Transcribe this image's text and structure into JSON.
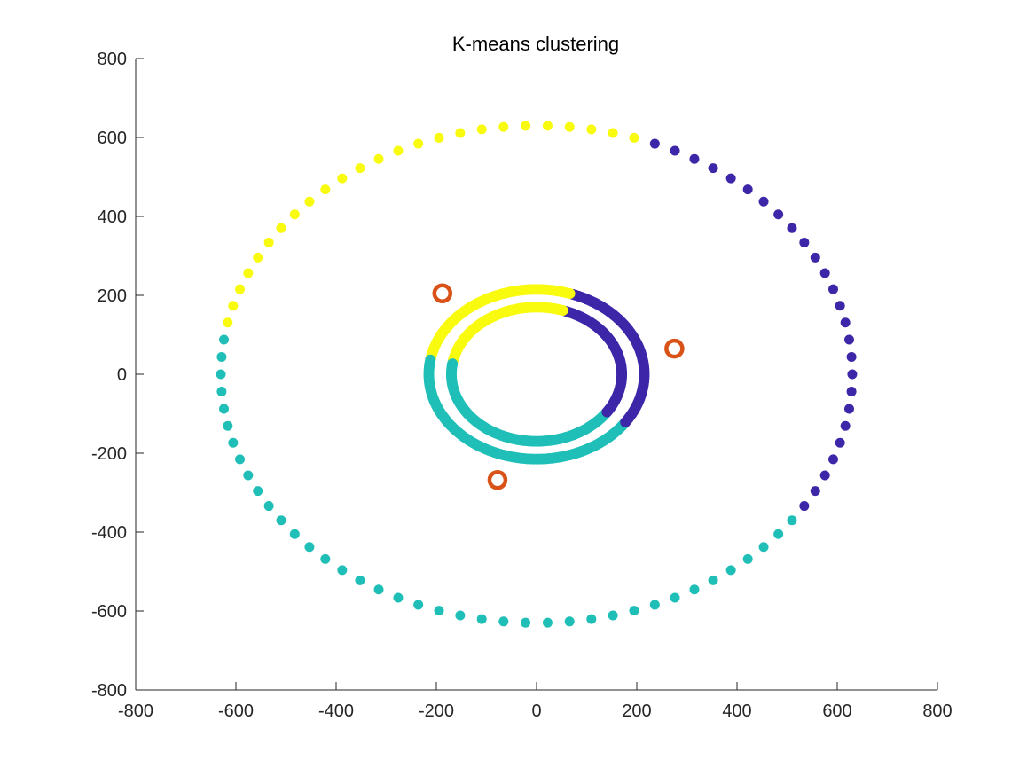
{
  "chart_data": {
    "type": "scatter",
    "title": "K-means clustering",
    "xlabel": "",
    "ylabel": "",
    "xlim": [
      -800,
      800
    ],
    "ylim": [
      -800,
      800
    ],
    "xticks": [
      -800,
      -600,
      -400,
      -200,
      0,
      200,
      400,
      600,
      800
    ],
    "yticks": [
      -800,
      -600,
      -400,
      -200,
      0,
      200,
      400,
      600,
      800
    ],
    "grid": false,
    "legend": "none",
    "colors": {
      "cluster_1": "#3d26a8",
      "cluster_2": "#1fbfb8",
      "cluster_3": "#f9fb0e",
      "centroids": "#d95319"
    },
    "rings": [
      {
        "cx": 0,
        "cy": 0,
        "rx": 630,
        "ry": 630,
        "n": 90
      },
      {
        "cx": 0,
        "cy": 0,
        "rx": 215,
        "ry": 215,
        "n": 220
      },
      {
        "cx": 0,
        "cy": 0,
        "rx": 170,
        "ry": 170,
        "n": 200
      }
    ],
    "series": [
      {
        "cluster": 1,
        "color": "#3d26a8",
        "angle_range_deg": [
          -35,
          72
        ]
      },
      {
        "cluster": 2,
        "color": "#1fbfb8",
        "angle_range_deg": [
          -190,
          -35
        ]
      },
      {
        "cluster": 3,
        "color": "#f9fb0e",
        "angle_range_deg": [
          72,
          170
        ]
      }
    ],
    "centroids": [
      {
        "x": -188,
        "y": 205
      },
      {
        "x": 275,
        "y": 65
      },
      {
        "x": -78,
        "y": -268
      }
    ]
  }
}
